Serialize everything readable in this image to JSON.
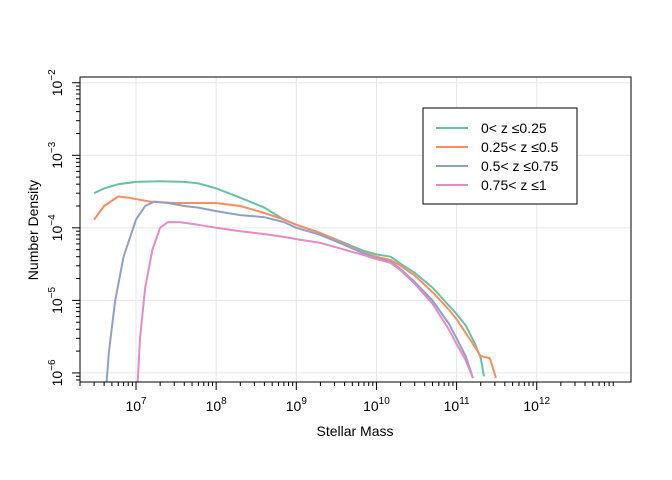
{
  "chart_data": {
    "type": "line",
    "title": "",
    "xlabel": "Stellar Mass",
    "ylabel": "Number Density",
    "x_scale": "log",
    "y_scale": "log",
    "xlim": [
      2000000,
      15000000000000
    ],
    "ylim": [
      7.5e-07,
      0.012
    ],
    "x_ticks": [
      {
        "value": 10000000,
        "base": "10",
        "exp": "7"
      },
      {
        "value": 100000000,
        "base": "10",
        "exp": "8"
      },
      {
        "value": 1000000000,
        "base": "10",
        "exp": "9"
      },
      {
        "value": 10000000000,
        "base": "10",
        "exp": "10"
      },
      {
        "value": 100000000000,
        "base": "10",
        "exp": "11"
      },
      {
        "value": 1000000000000,
        "base": "10",
        "exp": "12"
      }
    ],
    "y_ticks": [
      {
        "value": 1e-06,
        "base": "10",
        "exp": "−6"
      },
      {
        "value": 1e-05,
        "base": "10",
        "exp": "−5"
      },
      {
        "value": 0.0001,
        "base": "10",
        "exp": "−4"
      },
      {
        "value": 0.001,
        "base": "10",
        "exp": "−3"
      },
      {
        "value": 0.01,
        "base": "10",
        "exp": "−2"
      }
    ],
    "grid": true,
    "legend_position": "top-right",
    "series": [
      {
        "name": "0< z ≤0.25",
        "color": "#66C2A5",
        "points": [
          [
            3000000,
            0.0003
          ],
          [
            4000000,
            0.00035
          ],
          [
            6000000,
            0.0004
          ],
          [
            10000000,
            0.00043
          ],
          [
            20000000,
            0.00044
          ],
          [
            40000000,
            0.00043
          ],
          [
            60000000,
            0.00041
          ],
          [
            100000000,
            0.00035
          ],
          [
            200000000,
            0.00026
          ],
          [
            400000000,
            0.00019
          ],
          [
            700000000,
            0.00013
          ],
          [
            1000000000,
            0.00011
          ],
          [
            2000000000,
            8.5e-05
          ],
          [
            4000000000,
            6.2e-05
          ],
          [
            7000000000,
            4.8e-05
          ],
          [
            10000000000,
            4.3e-05
          ],
          [
            15000000000,
            4e-05
          ],
          [
            20000000000,
            3.2e-05
          ],
          [
            30000000000,
            2.4e-05
          ],
          [
            50000000000,
            1.5e-05
          ],
          [
            80000000000,
            8.5e-06
          ],
          [
            100000000000,
            6.5e-06
          ],
          [
            130000000000,
            4.5e-06
          ],
          [
            170000000000,
            2.5e-06
          ],
          [
            200000000000,
            1.6e-06
          ],
          [
            220000000000,
            9e-07
          ]
        ]
      },
      {
        "name": "0.25< z ≤0.5",
        "color": "#FC8D62",
        "points": [
          [
            3000000,
            0.00013
          ],
          [
            4000000,
            0.0002
          ],
          [
            6000000,
            0.00027
          ],
          [
            8000000,
            0.00026
          ],
          [
            15000000,
            0.00023
          ],
          [
            30000000,
            0.00022
          ],
          [
            60000000,
            0.00022
          ],
          [
            100000000,
            0.00022
          ],
          [
            200000000,
            0.0002
          ],
          [
            400000000,
            0.00016
          ],
          [
            700000000,
            0.00013
          ],
          [
            1000000000,
            0.00011
          ],
          [
            2000000000,
            8.5e-05
          ],
          [
            4000000000,
            6e-05
          ],
          [
            7000000000,
            4.5e-05
          ],
          [
            10000000000,
            4e-05
          ],
          [
            15000000000,
            3.6e-05
          ],
          [
            20000000000,
            3e-05
          ],
          [
            30000000000,
            2.2e-05
          ],
          [
            50000000000,
            1.3e-05
          ],
          [
            80000000000,
            7.5e-06
          ],
          [
            100000000000,
            5.5e-06
          ],
          [
            150000000000,
            2.8e-06
          ],
          [
            200000000000,
            1.7e-06
          ],
          [
            260000000000,
            1.6e-06
          ],
          [
            310000000000,
            8.5e-07
          ]
        ]
      },
      {
        "name": "0.5< z ≤0.75",
        "color": "#8DA0CB",
        "points": [
          [
            4300000,
            7.5e-07
          ],
          [
            4600000,
            2e-06
          ],
          [
            5500000,
            1e-05
          ],
          [
            7000000,
            4e-05
          ],
          [
            10000000,
            0.00013
          ],
          [
            13000000,
            0.0002
          ],
          [
            17000000,
            0.00023
          ],
          [
            25000000,
            0.00022
          ],
          [
            40000000,
            0.0002
          ],
          [
            60000000,
            0.00019
          ],
          [
            100000000,
            0.00017
          ],
          [
            200000000,
            0.00015
          ],
          [
            400000000,
            0.00014
          ],
          [
            700000000,
            0.00012
          ],
          [
            1000000000,
            0.0001
          ],
          [
            2000000000,
            8e-05
          ],
          [
            4000000000,
            5.8e-05
          ],
          [
            7000000000,
            4.4e-05
          ],
          [
            10000000000,
            3.8e-05
          ],
          [
            15000000000,
            3.4e-05
          ],
          [
            20000000000,
            2.7e-05
          ],
          [
            30000000000,
            1.8e-05
          ],
          [
            50000000000,
            1e-05
          ],
          [
            80000000000,
            4.8e-06
          ],
          [
            100000000000,
            3e-06
          ],
          [
            130000000000,
            1.7e-06
          ],
          [
            160000000000,
            8.5e-07
          ]
        ]
      },
      {
        "name": "0.75< z ≤1",
        "color": "#E78AC3",
        "points": [
          [
            10500000,
            7.5e-07
          ],
          [
            11200000,
            3e-06
          ],
          [
            13000000,
            1.5e-05
          ],
          [
            16000000,
            5e-05
          ],
          [
            20000000,
            0.0001
          ],
          [
            25000000,
            0.00012
          ],
          [
            35000000,
            0.00012
          ],
          [
            60000000,
            0.00011
          ],
          [
            100000000,
            0.0001
          ],
          [
            200000000,
            9e-05
          ],
          [
            400000000,
            8.2e-05
          ],
          [
            700000000,
            7.5e-05
          ],
          [
            1000000000,
            7e-05
          ],
          [
            2000000000,
            6.2e-05
          ],
          [
            4000000000,
            5e-05
          ],
          [
            7000000000,
            4.2e-05
          ],
          [
            10000000000,
            3.7e-05
          ],
          [
            15000000000,
            3.3e-05
          ],
          [
            20000000000,
            2.6e-05
          ],
          [
            30000000000,
            1.7e-05
          ],
          [
            50000000000,
            9e-06
          ],
          [
            80000000000,
            4e-06
          ],
          [
            100000000000,
            2.5e-06
          ],
          [
            130000000000,
            1.5e-06
          ],
          [
            160000000000,
            8.5e-07
          ]
        ]
      }
    ]
  }
}
